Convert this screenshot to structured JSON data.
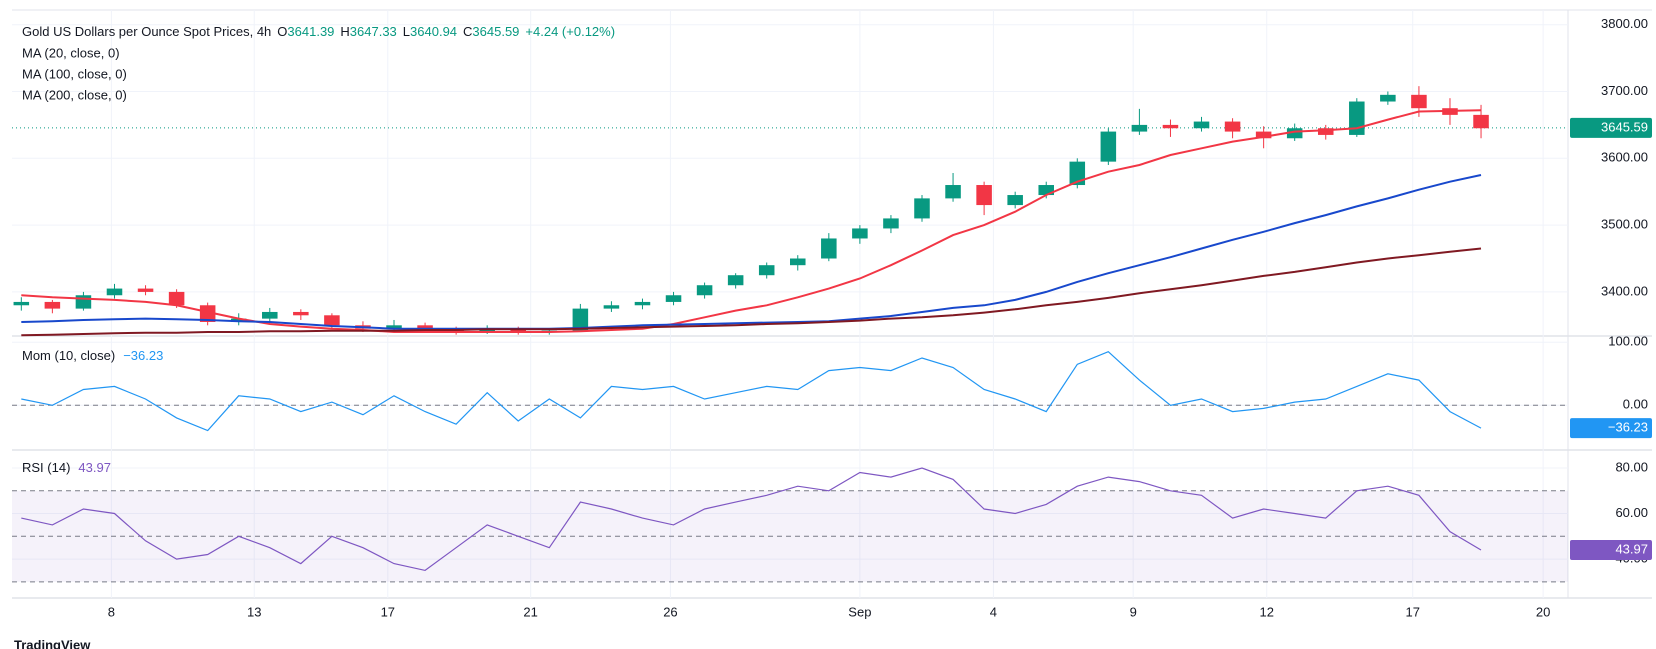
{
  "chart_data": {
    "type": "candlestick",
    "title": "Gold US Dollars per Ounce Spot Prices, 4h",
    "ohlc": {
      "O": 3641.39,
      "H": 3647.33,
      "L": 3640.94,
      "C": 3645.59
    },
    "change": "+4.24 (+0.12%)",
    "up_color": "#089981",
    "down_color": "#f23645",
    "candles": [
      [
        3380,
        3392,
        3372,
        3385
      ],
      [
        3385,
        3388,
        3368,
        3375
      ],
      [
        3375,
        3400,
        3372,
        3395
      ],
      [
        3395,
        3412,
        3390,
        3405
      ],
      [
        3405,
        3410,
        3395,
        3400
      ],
      [
        3400,
        3404,
        3376,
        3380
      ],
      [
        3380,
        3384,
        3350,
        3355
      ],
      [
        3355,
        3368,
        3350,
        3360
      ],
      [
        3360,
        3376,
        3356,
        3370
      ],
      [
        3370,
        3374,
        3358,
        3365
      ],
      [
        3365,
        3368,
        3346,
        3350
      ],
      [
        3350,
        3356,
        3340,
        3345
      ],
      [
        3345,
        3358,
        3342,
        3350
      ],
      [
        3350,
        3354,
        3340,
        3345
      ],
      [
        3345,
        3348,
        3336,
        3340
      ],
      [
        3340,
        3350,
        3337,
        3345
      ],
      [
        3345,
        3348,
        3336,
        3340
      ],
      [
        3340,
        3346,
        3336,
        3342
      ],
      [
        3342,
        3382,
        3340,
        3375
      ],
      [
        3375,
        3386,
        3370,
        3380
      ],
      [
        3380,
        3390,
        3374,
        3385
      ],
      [
        3385,
        3400,
        3380,
        3395
      ],
      [
        3395,
        3414,
        3390,
        3410
      ],
      [
        3410,
        3428,
        3405,
        3425
      ],
      [
        3425,
        3444,
        3420,
        3440
      ],
      [
        3440,
        3455,
        3432,
        3450
      ],
      [
        3450,
        3488,
        3446,
        3480
      ],
      [
        3480,
        3500,
        3472,
        3495
      ],
      [
        3495,
        3515,
        3488,
        3510
      ],
      [
        3510,
        3545,
        3505,
        3540
      ],
      [
        3540,
        3578,
        3535,
        3560
      ],
      [
        3560,
        3565,
        3515,
        3530
      ],
      [
        3530,
        3550,
        3525,
        3545
      ],
      [
        3545,
        3565,
        3540,
        3560
      ],
      [
        3560,
        3600,
        3555,
        3595
      ],
      [
        3595,
        3645,
        3590,
        3640
      ],
      [
        3640,
        3674,
        3635,
        3650
      ],
      [
        3650,
        3658,
        3632,
        3645
      ],
      [
        3645,
        3662,
        3640,
        3655
      ],
      [
        3655,
        3660,
        3630,
        3640
      ],
      [
        3640,
        3648,
        3615,
        3630
      ],
      [
        3630,
        3652,
        3626,
        3645
      ],
      [
        3645,
        3650,
        3628,
        3635
      ],
      [
        3635,
        3690,
        3632,
        3685
      ],
      [
        3685,
        3700,
        3680,
        3695
      ],
      [
        3695,
        3708,
        3662,
        3675
      ],
      [
        3675,
        3690,
        3650,
        3665
      ],
      [
        3665,
        3680,
        3630,
        3645
      ]
    ],
    "series": [
      {
        "name": "MA (20, close, 0)",
        "color": "#f23645",
        "values": [
          3395,
          3392,
          3390,
          3388,
          3385,
          3380,
          3370,
          3360,
          3352,
          3348,
          3345,
          3343,
          3340,
          3340,
          3340,
          3340,
          3340,
          3340,
          3341,
          3343,
          3345,
          3352,
          3362,
          3372,
          3380,
          3392,
          3405,
          3420,
          3440,
          3462,
          3485,
          3500,
          3520,
          3545,
          3565,
          3580,
          3590,
          3605,
          3615,
          3625,
          3632,
          3640,
          3642,
          3645,
          3658,
          3670,
          3671,
          3672
        ]
      },
      {
        "name": "MA (100, close, 0)",
        "color": "#1848cc",
        "values": [
          3355,
          3356,
          3358,
          3359,
          3360,
          3359,
          3358,
          3356,
          3355,
          3352,
          3349,
          3347,
          3345,
          3345,
          3345,
          3345,
          3345,
          3345,
          3346,
          3348,
          3350,
          3351,
          3352,
          3353,
          3354,
          3355,
          3356,
          3360,
          3364,
          3370,
          3376,
          3380,
          3388,
          3400,
          3415,
          3428,
          3440,
          3452,
          3465,
          3478,
          3490,
          3503,
          3515,
          3528,
          3540,
          3553,
          3565,
          3575
        ]
      },
      {
        "name": "MA (200, close, 0)",
        "color": "#801922",
        "values": [
          3335,
          3336,
          3337,
          3338,
          3339,
          3339,
          3340,
          3340,
          3341,
          3341,
          3342,
          3342,
          3342,
          3343,
          3343,
          3344,
          3344,
          3344,
          3345,
          3346,
          3347,
          3348,
          3349,
          3350,
          3352,
          3353,
          3355,
          3357,
          3360,
          3362,
          3365,
          3369,
          3374,
          3380,
          3385,
          3391,
          3398,
          3404,
          3410,
          3417,
          3424,
          3430,
          3437,
          3444,
          3450,
          3455,
          3460,
          3465
        ]
      }
    ],
    "xlim": [
      -0.3,
      49.8
    ],
    "xticks": [
      {
        "value": 2.9,
        "label": "8"
      },
      {
        "value": 7.5,
        "label": "13"
      },
      {
        "value": 11.8,
        "label": "17"
      },
      {
        "value": 16.4,
        "label": "21"
      },
      {
        "value": 20.9,
        "label": "26"
      },
      {
        "value": 27.0,
        "label": "Sep"
      },
      {
        "value": 31.3,
        "label": "4"
      },
      {
        "value": 35.8,
        "label": "9"
      },
      {
        "value": 40.1,
        "label": "12"
      },
      {
        "value": 44.8,
        "label": "17"
      },
      {
        "value": 49.0,
        "label": "20"
      }
    ],
    "ylim": [
      3334,
      3822
    ],
    "yticks": [
      {
        "value": 3400,
        "label": "3400.00"
      },
      {
        "value": 3500,
        "label": "3500.00"
      },
      {
        "value": 3600,
        "label": "3600.00"
      },
      {
        "value": 3700,
        "label": "3700.00"
      },
      {
        "value": 3800,
        "label": "3800.00"
      }
    ],
    "last_price": 3645.59,
    "momentum": {
      "name": "Mom (10, close)",
      "color": "#2196f3",
      "values": [
        10,
        0,
        25,
        30,
        10,
        -20,
        -40,
        15,
        10,
        -10,
        5,
        -15,
        15,
        -10,
        -30,
        20,
        -25,
        10,
        -20,
        30,
        25,
        30,
        10,
        20,
        30,
        25,
        55,
        60,
        55,
        75,
        60,
        25,
        10,
        -10,
        65,
        85,
        40,
        0,
        10,
        -10,
        -5,
        5,
        10,
        30,
        50,
        40,
        -10,
        -36.23
      ],
      "current": {
        "value": -36.23,
        "label": "−36.23"
      },
      "ylim": [
        -71,
        110
      ],
      "yticks": [
        {
          "value": 0,
          "label": "0.00"
        },
        {
          "value": 100,
          "label": "100.00"
        }
      ],
      "zero": 0
    },
    "rsi": {
      "name": "RSI (14)",
      "color": "#7e57c2",
      "values": [
        58,
        55,
        62,
        60,
        48,
        40,
        42,
        50,
        45,
        38,
        50,
        45,
        38,
        35,
        45,
        55,
        50,
        45,
        65,
        62,
        58,
        55,
        62,
        65,
        68,
        72,
        70,
        78,
        76,
        80,
        75,
        62,
        60,
        64,
        72,
        76,
        74,
        70,
        68,
        58,
        62,
        60,
        58,
        70,
        72,
        68,
        52,
        43.97
      ],
      "current": 43.97,
      "ylim": [
        22.9,
        87.9
      ],
      "yticks": [
        {
          "value": 40,
          "label": "40.00"
        },
        {
          "value": 60,
          "label": "60.00"
        },
        {
          "value": 80,
          "label": "80.00"
        }
      ],
      "levels": [
        30,
        50,
        70
      ]
    }
  },
  "footer": "TradingView"
}
